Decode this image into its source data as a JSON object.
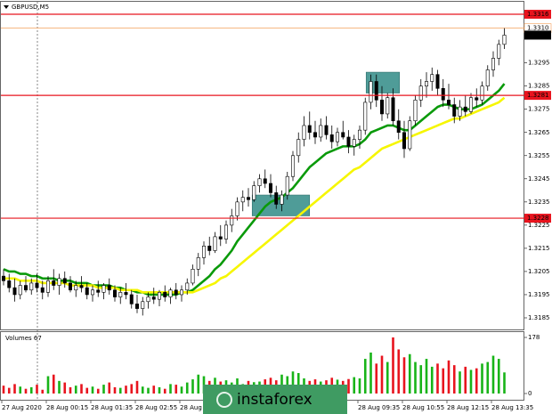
{
  "chart_data": {
    "type": "candlestick",
    "title": "GBPUSD,M5",
    "volume_title": "Volumes 67",
    "watermark": "instaforex",
    "ylim": [
      1.318,
      1.3321
    ],
    "yticks": [
      1.3185,
      1.3195,
      1.3205,
      1.3215,
      1.3225,
      1.3235,
      1.3245,
      1.3255,
      1.3265,
      1.3275,
      1.3285,
      1.3295
    ],
    "levels": [
      1.3316,
      1.3281,
      1.3228
    ],
    "level_color": "#e8141e",
    "ask_line": {
      "value": 1.331,
      "label": "1.3310"
    },
    "ask_color": "#f4a05a",
    "last_price": 1.3307,
    "zones": [
      {
        "low": 1.3229,
        "high": 1.3238
      },
      {
        "low": 1.3282,
        "high": 1.3291
      }
    ],
    "zone_color": "#4f9c98",
    "categories": [
      "27 Aug 2020",
      null,
      null,
      null,
      null,
      null,
      null,
      null,
      "28 Aug 00:15",
      null,
      null,
      null,
      null,
      null,
      null,
      null,
      "28 Aug 01:35",
      null,
      null,
      null,
      null,
      null,
      null,
      null,
      "28 Aug 02:55",
      null,
      null,
      null,
      null,
      null,
      null,
      null,
      "28 Aug 04:15",
      null,
      null,
      null,
      null,
      null,
      null,
      null,
      null,
      null,
      null,
      null,
      null,
      null,
      null,
      null,
      null,
      null,
      null,
      null,
      null,
      null,
      null,
      null,
      null,
      null,
      null,
      null,
      null,
      null,
      null,
      null,
      "28 Aug 09:35",
      null,
      null,
      null,
      null,
      null,
      null,
      null,
      "28 Aug 10:55",
      null,
      null,
      null,
      null,
      null,
      null,
      null,
      "28 Aug 12:15",
      null,
      null,
      null,
      null,
      null,
      null,
      null,
      "28 Aug 13:35",
      null,
      null
    ],
    "candles": [
      [
        1.3203,
        1.3206,
        1.3199,
        1.3201
      ],
      [
        1.3201,
        1.3204,
        1.3196,
        1.3198
      ],
      [
        1.3198,
        1.3202,
        1.3192,
        1.3195
      ],
      [
        1.3195,
        1.3201,
        1.3193,
        1.3199
      ],
      [
        1.3199,
        1.3203,
        1.3196,
        1.3197
      ],
      [
        1.3197,
        1.3202,
        1.3195,
        1.32
      ],
      [
        1.32,
        1.3204,
        1.3196,
        1.3198
      ],
      [
        1.3198,
        1.3201,
        1.3193,
        1.3196
      ],
      [
        1.3196,
        1.3203,
        1.3194,
        1.3201
      ],
      [
        1.3201,
        1.3206,
        1.3197,
        1.3199
      ],
      [
        1.3199,
        1.3204,
        1.3195,
        1.3202
      ],
      [
        1.3202,
        1.3205,
        1.3198,
        1.32
      ],
      [
        1.32,
        1.3203,
        1.3196,
        1.3197
      ],
      [
        1.3197,
        1.3201,
        1.3194,
        1.3199
      ],
      [
        1.3199,
        1.3203,
        1.3196,
        1.3198
      ],
      [
        1.3198,
        1.32,
        1.3193,
        1.3195
      ],
      [
        1.3195,
        1.3199,
        1.3192,
        1.3197
      ],
      [
        1.3197,
        1.3201,
        1.3194,
        1.3196
      ],
      [
        1.3196,
        1.32,
        1.3193,
        1.3199
      ],
      [
        1.3199,
        1.3202,
        1.3195,
        1.3197
      ],
      [
        1.3197,
        1.3199,
        1.3192,
        1.3194
      ],
      [
        1.3194,
        1.3198,
        1.3191,
        1.3196
      ],
      [
        1.3196,
        1.32,
        1.3193,
        1.3195
      ],
      [
        1.3195,
        1.3197,
        1.3189,
        1.3191
      ],
      [
        1.3191,
        1.3195,
        1.3187,
        1.3189
      ],
      [
        1.3189,
        1.3194,
        1.3186,
        1.3192
      ],
      [
        1.3192,
        1.3196,
        1.3189,
        1.3194
      ],
      [
        1.3194,
        1.3198,
        1.3191,
        1.3193
      ],
      [
        1.3193,
        1.3197,
        1.319,
        1.3196
      ],
      [
        1.3196,
        1.3199,
        1.3192,
        1.3194
      ],
      [
        1.3194,
        1.3198,
        1.3191,
        1.3197
      ],
      [
        1.3197,
        1.32,
        1.3193,
        1.3195
      ],
      [
        1.3195,
        1.3199,
        1.3192,
        1.3197
      ],
      [
        1.3197,
        1.3202,
        1.3195,
        1.32
      ],
      [
        1.32,
        1.3208,
        1.3199,
        1.3206
      ],
      [
        1.3206,
        1.3213,
        1.3203,
        1.3211
      ],
      [
        1.3211,
        1.3218,
        1.3208,
        1.3216
      ],
      [
        1.3216,
        1.322,
        1.3212,
        1.3214
      ],
      [
        1.3214,
        1.3222,
        1.3213,
        1.322
      ],
      [
        1.322,
        1.3225,
        1.3216,
        1.3219
      ],
      [
        1.3219,
        1.3227,
        1.3217,
        1.3225
      ],
      [
        1.3225,
        1.3232,
        1.3222,
        1.3229
      ],
      [
        1.3229,
        1.3237,
        1.3227,
        1.3235
      ],
      [
        1.3235,
        1.324,
        1.3231,
        1.3237
      ],
      [
        1.3237,
        1.3241,
        1.3233,
        1.3236
      ],
      [
        1.3236,
        1.3244,
        1.3235,
        1.3242
      ],
      [
        1.3242,
        1.3247,
        1.3239,
        1.3245
      ],
      [
        1.3245,
        1.3249,
        1.3241,
        1.3243
      ],
      [
        1.3243,
        1.3247,
        1.3237,
        1.3239
      ],
      [
        1.3239,
        1.3242,
        1.3232,
        1.3234
      ],
      [
        1.3234,
        1.324,
        1.3231,
        1.3238
      ],
      [
        1.3238,
        1.3248,
        1.3236,
        1.3246
      ],
      [
        1.3246,
        1.3257,
        1.3244,
        1.3255
      ],
      [
        1.3255,
        1.3265,
        1.3252,
        1.3262
      ],
      [
        1.3262,
        1.3272,
        1.3259,
        1.3268
      ],
      [
        1.3268,
        1.3274,
        1.3262,
        1.3265
      ],
      [
        1.3265,
        1.327,
        1.326,
        1.3263
      ],
      [
        1.3263,
        1.3271,
        1.3261,
        1.3268
      ],
      [
        1.3268,
        1.3272,
        1.3262,
        1.3264
      ],
      [
        1.3264,
        1.3268,
        1.3258,
        1.3261
      ],
      [
        1.3261,
        1.3267,
        1.3259,
        1.3265
      ],
      [
        1.3265,
        1.327,
        1.3262,
        1.3263
      ],
      [
        1.3263,
        1.3266,
        1.3256,
        1.3259
      ],
      [
        1.3259,
        1.3264,
        1.3255,
        1.3262
      ],
      [
        1.3262,
        1.3268,
        1.3258,
        1.3266
      ],
      [
        1.3266,
        1.328,
        1.3264,
        1.3278
      ],
      [
        1.3278,
        1.329,
        1.3275,
        1.3287
      ],
      [
        1.3287,
        1.329,
        1.3276,
        1.3279
      ],
      [
        1.3279,
        1.3285,
        1.327,
        1.3273
      ],
      [
        1.3273,
        1.3282,
        1.3271,
        1.328
      ],
      [
        1.328,
        1.3284,
        1.3268,
        1.327
      ],
      [
        1.327,
        1.3275,
        1.3262,
        1.3265
      ],
      [
        1.3265,
        1.327,
        1.3254,
        1.3258
      ],
      [
        1.3258,
        1.3272,
        1.3257,
        1.327
      ],
      [
        1.327,
        1.3281,
        1.3268,
        1.3279
      ],
      [
        1.3279,
        1.3288,
        1.3276,
        1.3285
      ],
      [
        1.3285,
        1.3291,
        1.328,
        1.3287
      ],
      [
        1.3287,
        1.3293,
        1.3283,
        1.329
      ],
      [
        1.329,
        1.3292,
        1.3281,
        1.3284
      ],
      [
        1.3284,
        1.3288,
        1.3276,
        1.3279
      ],
      [
        1.3279,
        1.3286,
        1.3275,
        1.3277
      ],
      [
        1.3277,
        1.328,
        1.3269,
        1.3272
      ],
      [
        1.3272,
        1.3279,
        1.327,
        1.3276
      ],
      [
        1.3276,
        1.3281,
        1.3272,
        1.3274
      ],
      [
        1.3274,
        1.3282,
        1.3273,
        1.328
      ],
      [
        1.328,
        1.3284,
        1.3276,
        1.3279
      ],
      [
        1.3279,
        1.3287,
        1.3277,
        1.3285
      ],
      [
        1.3285,
        1.3294,
        1.3283,
        1.3292
      ],
      [
        1.3292,
        1.33,
        1.3289,
        1.3297
      ],
      [
        1.3297,
        1.3305,
        1.3294,
        1.3303
      ],
      [
        1.3303,
        1.331,
        1.3301,
        1.3307
      ]
    ],
    "ma_lines": [
      {
        "color": "#0a9a0a",
        "values": [
          1.3206,
          1.3205,
          1.3205,
          1.3204,
          1.3204,
          1.3203,
          1.3203,
          1.3202,
          1.3202,
          1.3202,
          1.3201,
          1.3201,
          1.3201,
          1.32,
          1.32,
          1.32,
          1.3199,
          1.3199,
          1.3199,
          1.3199,
          1.3198,
          1.3198,
          1.3197,
          1.3197,
          1.3196,
          1.3196,
          1.3195,
          1.3195,
          1.3195,
          1.3195,
          1.3195,
          1.3195,
          1.3196,
          1.3196,
          1.3197,
          1.3199,
          1.3201,
          1.3203,
          1.3206,
          1.3208,
          1.3211,
          1.3214,
          1.3218,
          1.3221,
          1.3224,
          1.3227,
          1.323,
          1.3233,
          1.3235,
          1.3236,
          1.3237,
          1.3239,
          1.3241,
          1.3244,
          1.3247,
          1.325,
          1.3252,
          1.3254,
          1.3256,
          1.3257,
          1.3258,
          1.3259,
          1.3259,
          1.3259,
          1.326,
          1.3262,
          1.3265,
          1.3266,
          1.3267,
          1.3268,
          1.3268,
          1.3267,
          1.3266,
          1.3266,
          1.3268,
          1.327,
          1.3272,
          1.3274,
          1.3276,
          1.3277,
          1.3277,
          1.3276,
          1.3275,
          1.3275,
          1.3275,
          1.3276,
          1.3277,
          1.3279,
          1.3281,
          1.3283,
          1.3286
        ]
      },
      {
        "color": "#f6f600",
        "values": [
          1.3202,
          1.3202,
          1.3202,
          1.3201,
          1.3201,
          1.3201,
          1.3201,
          1.32,
          1.32,
          1.32,
          1.32,
          1.32,
          1.3199,
          1.3199,
          1.3199,
          1.3199,
          1.3199,
          1.3198,
          1.3198,
          1.3198,
          1.3198,
          1.3197,
          1.3197,
          1.3197,
          1.3197,
          1.3196,
          1.3196,
          1.3196,
          1.3196,
          1.3196,
          1.3196,
          1.3196,
          1.3196,
          1.3196,
          1.3196,
          1.3197,
          1.3198,
          1.3199,
          1.32,
          1.3202,
          1.3203,
          1.3205,
          1.3207,
          1.3209,
          1.3211,
          1.3213,
          1.3215,
          1.3217,
          1.3219,
          1.3221,
          1.3223,
          1.3225,
          1.3227,
          1.3229,
          1.3231,
          1.3233,
          1.3235,
          1.3237,
          1.3239,
          1.3241,
          1.3243,
          1.3245,
          1.3247,
          1.3249,
          1.325,
          1.3252,
          1.3254,
          1.3256,
          1.3258,
          1.3259,
          1.326,
          1.3261,
          1.3262,
          1.3263,
          1.3264,
          1.3265,
          1.3266,
          1.3267,
          1.3268,
          1.3269,
          1.327,
          1.3271,
          1.3271,
          1.3272,
          1.3273,
          1.3274,
          1.3275,
          1.3276,
          1.3277,
          1.3278,
          1.328
        ]
      }
    ],
    "volumes": [
      25,
      18,
      30,
      22,
      15,
      20,
      28,
      12,
      55,
      60,
      40,
      35,
      20,
      25,
      30,
      18,
      22,
      15,
      28,
      35,
      20,
      18,
      25,
      30,
      40,
      22,
      18,
      25,
      20,
      15,
      30,
      28,
      22,
      35,
      45,
      60,
      55,
      40,
      50,
      38,
      42,
      35,
      48,
      30,
      40,
      36,
      38,
      45,
      50,
      42,
      60,
      55,
      70,
      65,
      48,
      40,
      45,
      38,
      42,
      50,
      44,
      40,
      46,
      52,
      48,
      110,
      130,
      95,
      120,
      100,
      178,
      140,
      115,
      125,
      100,
      90,
      110,
      85,
      95,
      80,
      105,
      90,
      70,
      85,
      75,
      80,
      95,
      100,
      120,
      110,
      67
    ],
    "volume_ylim": [
      0,
      178
    ],
    "volume_yticks": [
      0,
      178
    ],
    "up_color": "#18b418",
    "down_color": "#e8141e"
  }
}
